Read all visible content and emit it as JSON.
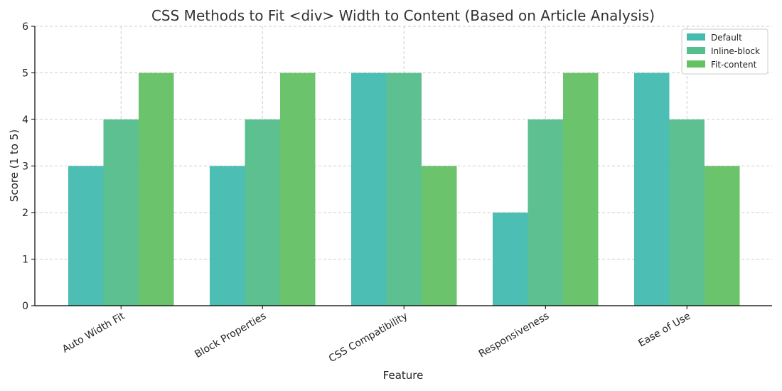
{
  "chart_data": {
    "type": "bar",
    "title": "CSS Methods to Fit <div> Width to Content (Based on Article Analysis)",
    "xlabel": "Feature",
    "ylabel": "Score (1 to 5)",
    "ylim": [
      0,
      6
    ],
    "yticks": [
      0,
      1,
      2,
      3,
      4,
      5,
      6
    ],
    "grid": true,
    "legend_position": "top-right",
    "categories": [
      "Auto Width Fit",
      "Block Properties",
      "CSS Compatibility",
      "Responsiveness",
      "Ease of Use"
    ],
    "series": [
      {
        "name": "Default",
        "color": "#45bbb0",
        "values": [
          3,
          3,
          5,
          2,
          5
        ]
      },
      {
        "name": "Inline-block",
        "color": "#56bd8c",
        "values": [
          4,
          4,
          5,
          4,
          4
        ]
      },
      {
        "name": "Fit-content",
        "color": "#65c165",
        "values": [
          5,
          5,
          3,
          5,
          3
        ]
      }
    ]
  }
}
